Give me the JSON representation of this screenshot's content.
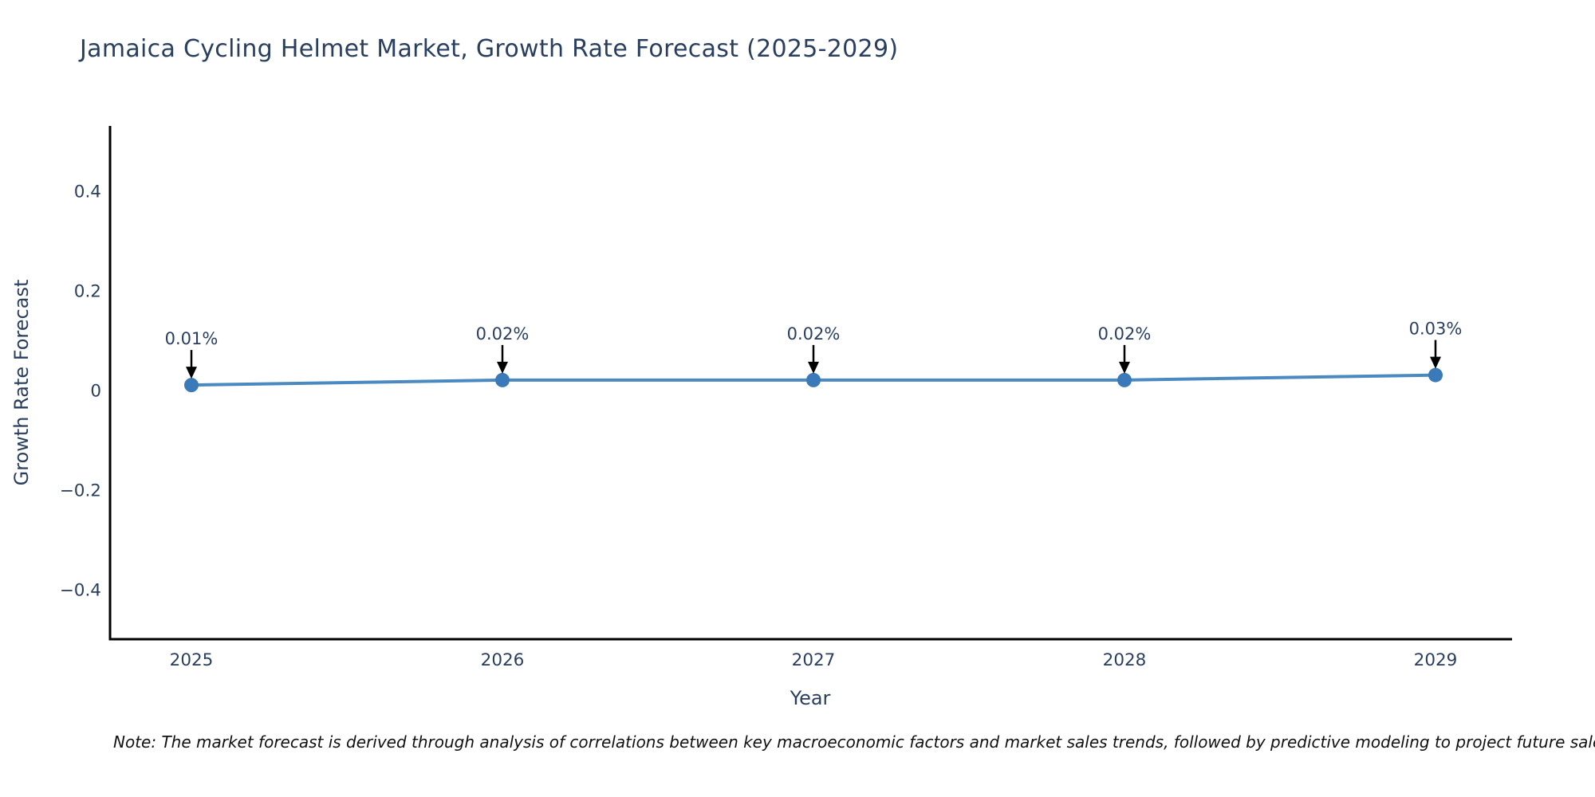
{
  "chart_data": {
    "type": "line",
    "title": "Jamaica Cycling Helmet Market, Growth Rate Forecast (2025-2029)",
    "xlabel": "Year",
    "ylabel": "Growth Rate Forecast",
    "x": [
      2025,
      2026,
      2027,
      2028,
      2029
    ],
    "x_tick_labels": [
      "2025",
      "2026",
      "2027",
      "2028",
      "2029"
    ],
    "values": [
      0.01,
      0.02,
      0.02,
      0.02,
      0.03
    ],
    "point_labels": [
      "0.01%",
      "0.02%",
      "0.02%",
      "0.02%",
      "0.03%"
    ],
    "y_ticks": [
      0.4,
      0.2,
      0,
      -0.2,
      -0.4
    ],
    "y_tick_labels": [
      "0.4",
      "0.2",
      "0",
      "−0.2",
      "−0.4"
    ],
    "ylim": [
      -0.5,
      0.53
    ],
    "grid": false,
    "legend": "none",
    "colors": {
      "line": "#4a8ac0",
      "marker": "#3a7ab8",
      "axis": "#000000",
      "text": "#2a3f5f",
      "annotation_arrow": "#000000"
    }
  },
  "note": {
    "text": "Note: The market forecast is derived through analysis of correlations between key macroeconomic factors and market sales trends, followed by predictive modeling to project future sales."
  }
}
